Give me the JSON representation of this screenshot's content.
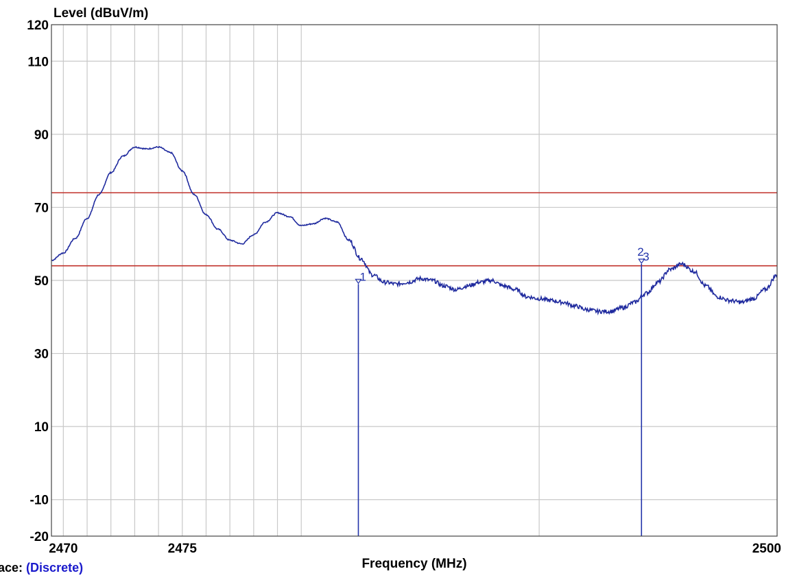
{
  "chart_data": {
    "type": "line",
    "xlabel": "Frequency (MHz)",
    "ylabel": "Level (dBuV/m)",
    "xlim": [
      2469.5,
      2500
    ],
    "ylim": [
      -20,
      120
    ],
    "y_ticks": [
      120,
      110,
      90,
      70,
      50,
      30,
      10,
      -10,
      -20
    ],
    "x_ticks": [
      2470,
      2475,
      2500
    ],
    "x_tick_labels": [
      "2470",
      "2475",
      "2500"
    ],
    "grid": true,
    "grid_colors": {
      "grid": "#c8c8c8",
      "limit": "#c0302a",
      "trace": "#1f2a9e",
      "marker": "#2233aa"
    },
    "limit_lines": [
      {
        "y": 74,
        "color": "#c0302a"
      },
      {
        "y": 54,
        "color": "#c0302a"
      }
    ],
    "series": [
      {
        "color": "#1f2a9e",
        "x": [
          2469.5,
          2470.0,
          2470.5,
          2471.0,
          2471.5,
          2472.0,
          2472.5,
          2473.0,
          2473.5,
          2474.0,
          2474.5,
          2475.0,
          2475.5,
          2476.0,
          2476.5,
          2477.0,
          2477.5,
          2478.0,
          2478.5,
          2479.0,
          2479.5,
          2480.0,
          2480.5,
          2481.0,
          2481.5,
          2482.0,
          2482.5,
          2483.0,
          2483.5,
          2484.0,
          2484.5,
          2485.0,
          2485.5,
          2486.0,
          2486.5,
          2487.0,
          2487.5,
          2488.0,
          2488.5,
          2489.0,
          2489.5,
          2490.0,
          2490.5,
          2491.0,
          2491.5,
          2492.0,
          2492.5,
          2493.0,
          2493.5,
          2494.0,
          2494.5,
          2495.0,
          2495.5,
          2496.0,
          2496.5,
          2497.0,
          2497.5,
          2498.0,
          2498.5,
          2499.0,
          2499.5,
          2500.0
        ],
        "y": [
          55.5,
          57.5,
          61.5,
          67.0,
          73.5,
          79.5,
          84.0,
          86.5,
          86.0,
          86.5,
          85.0,
          80.0,
          73.5,
          68.0,
          64.0,
          61.0,
          60.0,
          62.5,
          66.0,
          68.5,
          67.5,
          65.0,
          65.5,
          67.0,
          66.0,
          61.0,
          56.0,
          51.5,
          49.5,
          49.0,
          49.5,
          50.5,
          50.0,
          48.5,
          47.5,
          48.5,
          49.5,
          50.0,
          48.5,
          47.5,
          45.5,
          45.0,
          44.5,
          44.0,
          43.0,
          42.0,
          41.5,
          41.5,
          42.5,
          44.0,
          46.5,
          49.5,
          53.0,
          54.5,
          52.5,
          48.5,
          45.5,
          44.5,
          44.0,
          45.0,
          47.5,
          51.5
        ]
      }
    ],
    "markers": [
      {
        "label": "1",
        "x": 2482.4,
        "y": 49.0
      },
      {
        "label": "3",
        "x": 2494.3,
        "y": 54.5
      }
    ],
    "marker_sublabels": [
      {
        "label": "2",
        "x": 2494.3
      }
    ]
  },
  "footer": {
    "trace_label": "race:",
    "trace_value": "(Discrete)"
  }
}
